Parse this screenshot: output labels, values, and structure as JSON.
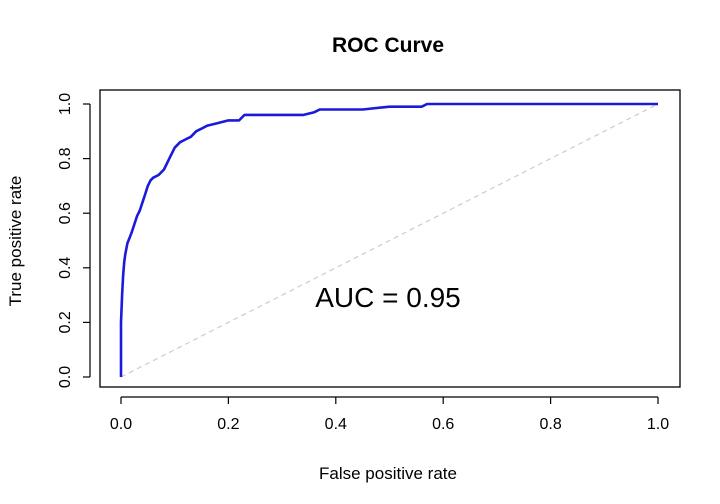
{
  "chart_data": {
    "type": "line",
    "title": "ROC Curve",
    "xlabel": "False positive rate",
    "ylabel": "True positive rate",
    "xlim": [
      0,
      1
    ],
    "ylim": [
      0,
      1
    ],
    "xticks": [
      "0.0",
      "0.2",
      "0.4",
      "0.6",
      "0.8",
      "1.0"
    ],
    "yticks": [
      "0.0",
      "0.2",
      "0.4",
      "0.6",
      "0.8",
      "1.0"
    ],
    "annotation": "AUC = 0.95",
    "grid": false,
    "series": [
      {
        "color": "#1a1adb",
        "x": [
          0.0,
          0.0,
          0.002,
          0.004,
          0.006,
          0.008,
          0.012,
          0.016,
          0.02,
          0.025,
          0.03,
          0.035,
          0.04,
          0.045,
          0.05,
          0.055,
          0.06,
          0.07,
          0.08,
          0.09,
          0.1,
          0.11,
          0.12,
          0.13,
          0.14,
          0.15,
          0.16,
          0.18,
          0.2,
          0.22,
          0.23,
          0.26,
          0.3,
          0.34,
          0.36,
          0.37,
          0.4,
          0.45,
          0.5,
          0.56,
          0.57,
          0.6,
          0.7,
          0.8,
          0.9,
          1.0
        ],
        "y": [
          0.0,
          0.2,
          0.3,
          0.37,
          0.42,
          0.45,
          0.49,
          0.51,
          0.53,
          0.56,
          0.59,
          0.61,
          0.64,
          0.67,
          0.7,
          0.72,
          0.73,
          0.74,
          0.76,
          0.8,
          0.84,
          0.86,
          0.87,
          0.88,
          0.9,
          0.91,
          0.92,
          0.93,
          0.94,
          0.94,
          0.96,
          0.96,
          0.96,
          0.96,
          0.97,
          0.98,
          0.98,
          0.98,
          0.99,
          0.99,
          1.0,
          1.0,
          1.0,
          1.0,
          1.0,
          1.0
        ]
      },
      {
        "color": "#cccccc",
        "dash": "dashed",
        "x": [
          0,
          1
        ],
        "y": [
          0,
          1
        ]
      }
    ]
  }
}
